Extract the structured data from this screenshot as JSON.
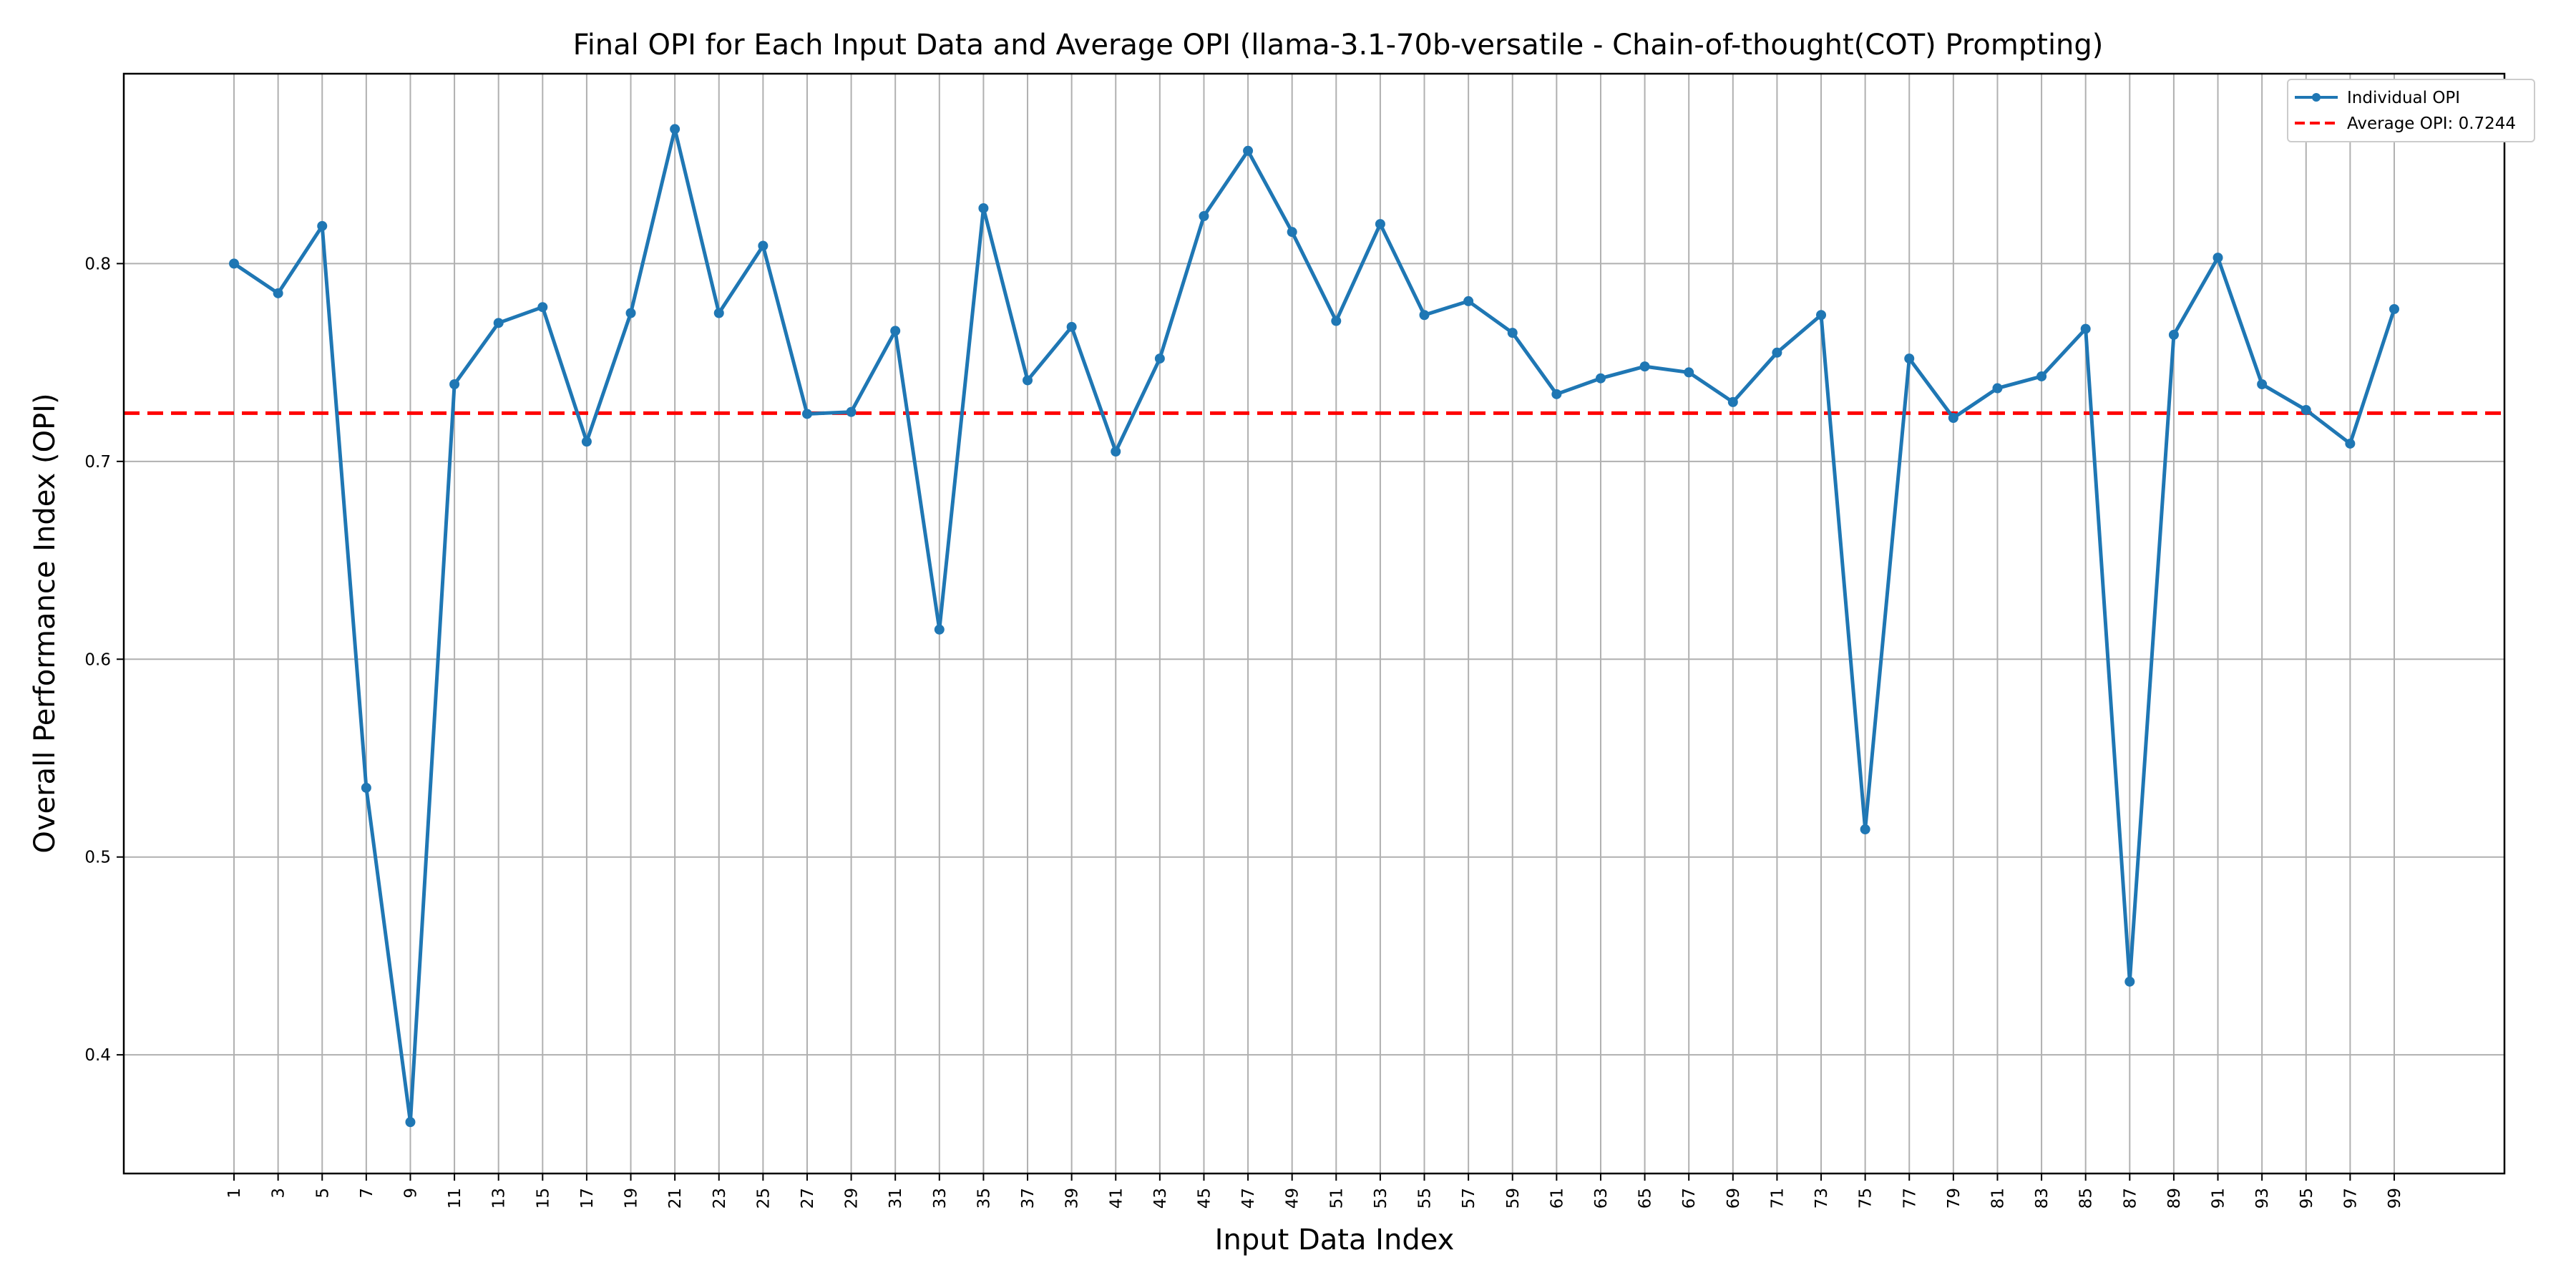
{
  "chart_data": {
    "type": "line",
    "title": "Final OPI for Each Input Data and Average OPI (llama-3.1-70b-versatile - Chain-of-thought(COT) Prompting)",
    "xlabel": "Input Data Index",
    "ylabel": "Overall Performance Index (OPI)",
    "x": [
      1,
      3,
      5,
      7,
      9,
      11,
      13,
      15,
      17,
      19,
      21,
      23,
      25,
      27,
      29,
      31,
      33,
      35,
      37,
      39,
      41,
      43,
      45,
      47,
      49,
      51,
      53,
      55,
      57,
      59,
      61,
      63,
      65,
      67,
      69,
      71,
      73,
      75,
      77,
      79,
      81,
      83,
      85,
      87,
      89,
      91,
      93,
      95,
      97,
      99
    ],
    "x_ticks": [
      "1",
      "3",
      "5",
      "7",
      "9",
      "11",
      "13",
      "15",
      "17",
      "19",
      "21",
      "23",
      "25",
      "27",
      "29",
      "31",
      "33",
      "35",
      "37",
      "39",
      "41",
      "43",
      "45",
      "47",
      "49",
      "51",
      "53",
      "55",
      "57",
      "59",
      "61",
      "63",
      "65",
      "67",
      "69",
      "71",
      "73",
      "75",
      "77",
      "79",
      "81",
      "83",
      "85",
      "87",
      "89",
      "91",
      "93",
      "95",
      "97",
      "99"
    ],
    "xlim": [
      -4,
      104
    ],
    "ylim": [
      0.34,
      0.896
    ],
    "y_ticks": [
      0.4,
      0.5,
      0.6,
      0.7,
      0.8
    ],
    "y_tick_labels": [
      "0.4",
      "0.5",
      "0.6",
      "0.7",
      "0.8"
    ],
    "series": [
      {
        "name": "Individual OPI",
        "color": "#1f77b4",
        "marker": "circle",
        "values": [
          0.8,
          0.785,
          0.819,
          0.535,
          0.366,
          0.739,
          0.77,
          0.778,
          0.71,
          0.775,
          0.868,
          0.775,
          0.809,
          0.724,
          0.725,
          0.766,
          0.615,
          0.828,
          0.741,
          0.768,
          0.705,
          0.752,
          0.824,
          0.857,
          0.816,
          0.771,
          0.82,
          0.774,
          0.781,
          0.765,
          0.734,
          0.742,
          0.748,
          0.745,
          0.73,
          0.755,
          0.774,
          0.514,
          0.752,
          0.722,
          0.737,
          0.743,
          0.767,
          0.437,
          0.764,
          0.803,
          0.739,
          0.726,
          0.709,
          0.777
        ]
      }
    ],
    "average": {
      "name": "Average OPI: 0.7244",
      "value": 0.7244,
      "color": "#ff0000",
      "style": "dashed"
    },
    "grid": true,
    "legend_position": "top-right"
  }
}
